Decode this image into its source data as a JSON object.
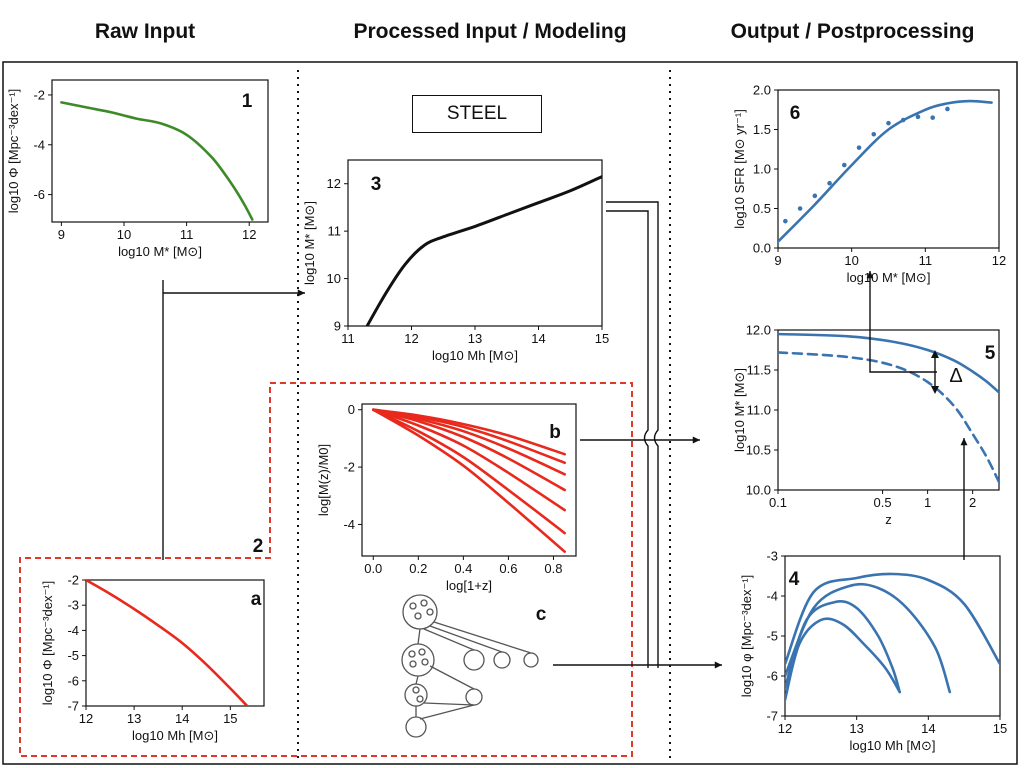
{
  "headers": {
    "raw": "Raw Input",
    "processed": "Processed Input / Modeling",
    "output": "Output / Postprocessing"
  },
  "steel_label": "STEEL",
  "panel_numbers": [
    "1",
    "2",
    "3",
    "4",
    "5",
    "6"
  ],
  "panel_letters": [
    "a",
    "b",
    "c"
  ],
  "colors": {
    "green": "#3d8a28",
    "red": "#e8291c",
    "blue": "#3a74b0",
    "black": "#111111",
    "dashed_border": "#e0392b"
  },
  "chart_data": [
    {
      "id": "panel-1",
      "type": "line",
      "xlabel": "log10 M* [M⊙]",
      "ylabel": "log10 Φ [Mpc⁻³dex⁻¹]",
      "xlim": [
        8.85,
        12.3
      ],
      "ylim": [
        -7.1,
        -1.4
      ],
      "xticks": [
        "9",
        "10",
        "11",
        "12"
      ],
      "yticks": [
        "-2",
        "-4",
        "-6"
      ],
      "series": [
        {
          "color": "green",
          "x": [
            9.0,
            9.4,
            9.8,
            10.2,
            10.6,
            11.0,
            11.4,
            11.7,
            11.9,
            12.05
          ],
          "y": [
            -2.3,
            -2.5,
            -2.7,
            -2.95,
            -3.15,
            -3.6,
            -4.5,
            -5.5,
            -6.3,
            -7.0
          ]
        }
      ]
    },
    {
      "id": "panel-a",
      "type": "line",
      "xlabel": "log10 Mh [M⊙]",
      "ylabel": "log10 Φ [Mpc⁻³dex⁻¹]",
      "xlim": [
        12.0,
        15.7
      ],
      "ylim": [
        -7.0,
        -2.0
      ],
      "xticks": [
        "12",
        "13",
        "14",
        "15"
      ],
      "yticks": [
        "-2",
        "-3",
        "-4",
        "-5",
        "-6",
        "-7"
      ],
      "series": [
        {
          "color": "red",
          "x": [
            12.0,
            12.5,
            13.0,
            13.5,
            14.0,
            14.5,
            15.0,
            15.35
          ],
          "y": [
            -2.0,
            -2.55,
            -3.15,
            -3.8,
            -4.5,
            -5.35,
            -6.3,
            -7.0
          ]
        }
      ]
    },
    {
      "id": "panel-3",
      "type": "line",
      "xlabel": "log10 Mh [M⊙]",
      "ylabel": "log10 M* [M⊙]",
      "xlim": [
        11.0,
        15.0
      ],
      "ylim": [
        9.0,
        12.5
      ],
      "xticks": [
        "11",
        "12",
        "13",
        "14",
        "15"
      ],
      "yticks": [
        "9",
        "10",
        "11",
        "12"
      ],
      "series": [
        {
          "color": "black",
          "x": [
            11.3,
            11.6,
            11.9,
            12.2,
            12.5,
            13.0,
            13.5,
            14.0,
            14.5,
            15.0
          ],
          "y": [
            9.0,
            9.7,
            10.3,
            10.7,
            10.88,
            11.1,
            11.35,
            11.6,
            11.85,
            12.15
          ]
        }
      ]
    },
    {
      "id": "panel-b",
      "type": "line",
      "xlabel": "log[1+z]",
      "ylabel": "log[M(z)/M0]",
      "xlim": [
        -0.05,
        0.9
      ],
      "ylim": [
        -5.1,
        0.2
      ],
      "xticks": [
        "0.0",
        "0.2",
        "0.4",
        "0.6",
        "0.8"
      ],
      "yticks": [
        "0",
        "-2",
        "-4"
      ],
      "series": [
        {
          "color": "red",
          "x": [
            0,
            0.2,
            0.4,
            0.6,
            0.85
          ],
          "y": [
            0,
            -0.2,
            -0.5,
            -0.9,
            -1.55
          ]
        },
        {
          "color": "red",
          "x": [
            0,
            0.2,
            0.4,
            0.6,
            0.85
          ],
          "y": [
            0,
            -0.25,
            -0.6,
            -1.1,
            -1.85
          ]
        },
        {
          "color": "red",
          "x": [
            0,
            0.2,
            0.4,
            0.6,
            0.85
          ],
          "y": [
            0,
            -0.32,
            -0.75,
            -1.35,
            -2.25
          ]
        },
        {
          "color": "red",
          "x": [
            0,
            0.2,
            0.4,
            0.6,
            0.85
          ],
          "y": [
            0,
            -0.4,
            -0.95,
            -1.7,
            -2.8
          ]
        },
        {
          "color": "red",
          "x": [
            0,
            0.2,
            0.4,
            0.6,
            0.85
          ],
          "y": [
            0,
            -0.55,
            -1.25,
            -2.2,
            -3.5
          ]
        },
        {
          "color": "red",
          "x": [
            0,
            0.2,
            0.4,
            0.6,
            0.85
          ],
          "y": [
            0,
            -0.75,
            -1.65,
            -2.8,
            -4.3
          ]
        },
        {
          "color": "red",
          "x": [
            0,
            0.2,
            0.4,
            0.6,
            0.85
          ],
          "y": [
            0,
            -0.9,
            -1.95,
            -3.25,
            -4.95
          ]
        }
      ]
    },
    {
      "id": "panel-6",
      "type": "scatter",
      "xlabel": "log10 M* [M⊙]",
      "ylabel": "log10 SFR [M⊙ yr⁻¹]",
      "xlim": [
        9.0,
        12.0
      ],
      "ylim": [
        0.0,
        2.0
      ],
      "xticks": [
        "9",
        "10",
        "11",
        "12"
      ],
      "yticks": [
        "0.0",
        "0.5",
        "1.0",
        "1.5",
        "2.0"
      ],
      "series": [
        {
          "color": "blue",
          "kind": "line",
          "x": [
            9.0,
            9.5,
            10.0,
            10.5,
            11.0,
            11.3,
            11.6,
            11.9
          ],
          "y": [
            0.08,
            0.55,
            1.05,
            1.5,
            1.75,
            1.83,
            1.86,
            1.84
          ]
        },
        {
          "color": "blue",
          "kind": "points",
          "x": [
            9.1,
            9.3,
            9.5,
            9.7,
            9.9,
            10.1,
            10.3,
            10.5,
            10.7,
            10.9,
            11.1,
            11.3
          ],
          "y": [
            0.34,
            0.5,
            0.66,
            0.82,
            1.05,
            1.27,
            1.44,
            1.58,
            1.62,
            1.66,
            1.65,
            1.76
          ]
        }
      ]
    },
    {
      "id": "panel-5",
      "type": "line",
      "xlabel": "z",
      "ylabel": "log10 M* [M⊙]",
      "xlim": [
        0.1,
        3.0
      ],
      "ylim": [
        10.0,
        12.0
      ],
      "xscale": "log",
      "xticks": [
        "0.1",
        "0.5",
        "1",
        "2"
      ],
      "yticks": [
        "10.0",
        "10.5",
        "11.0",
        "11.5",
        "12.0"
      ],
      "series": [
        {
          "color": "blue",
          "style": "solid",
          "x": [
            0.1,
            0.3,
            0.6,
            1.0,
            1.5,
            2.0,
            2.5,
            3.0
          ],
          "y": [
            11.95,
            11.92,
            11.85,
            11.75,
            11.62,
            11.48,
            11.35,
            11.22
          ]
        },
        {
          "color": "blue",
          "style": "dashed",
          "x": [
            0.1,
            0.3,
            0.6,
            1.0,
            1.5,
            2.0,
            2.5,
            3.0
          ],
          "y": [
            11.72,
            11.66,
            11.55,
            11.35,
            11.05,
            10.7,
            10.4,
            10.1
          ]
        }
      ],
      "annotations": [
        "Δ"
      ]
    },
    {
      "id": "panel-4",
      "type": "line",
      "xlabel": "log10 Mh [M⊙]",
      "ylabel": "log10 φ [Mpc⁻³dex⁻¹]",
      "xlim": [
        12.0,
        15.0
      ],
      "ylim": [
        -7.0,
        -3.0
      ],
      "xticks": [
        "12",
        "13",
        "14",
        "15"
      ],
      "yticks": [
        "-3",
        "-4",
        "-5",
        "-6",
        "-7"
      ],
      "series": [
        {
          "color": "blue",
          "x": [
            12.0,
            12.4,
            13.0,
            13.5,
            14.0,
            14.5,
            15.0
          ],
          "y": [
            -5.7,
            -3.9,
            -3.55,
            -3.45,
            -3.6,
            -4.2,
            -5.7
          ]
        },
        {
          "color": "blue",
          "x": [
            12.0,
            12.4,
            12.9,
            13.3,
            13.7,
            14.1,
            14.3
          ],
          "y": [
            -6.0,
            -4.3,
            -3.75,
            -3.8,
            -4.3,
            -5.3,
            -6.4
          ]
        },
        {
          "color": "blue",
          "x": [
            12.0,
            12.3,
            12.7,
            13.0,
            13.3,
            13.5,
            13.6
          ],
          "y": [
            -6.3,
            -4.6,
            -4.15,
            -4.3,
            -5.0,
            -5.8,
            -6.4
          ]
        },
        {
          "color": "blue",
          "x": [
            12.0,
            12.2,
            12.5,
            12.8,
            13.1,
            13.4,
            13.6
          ],
          "y": [
            -6.6,
            -5.2,
            -4.6,
            -4.7,
            -5.2,
            -5.8,
            -6.4
          ]
        }
      ]
    }
  ]
}
